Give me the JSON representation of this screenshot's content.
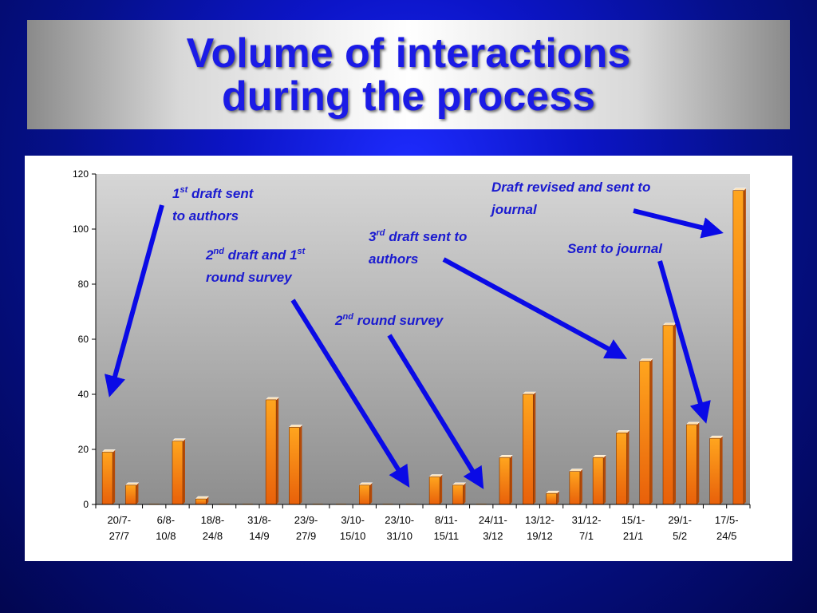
{
  "slide": {
    "title_line1": "Volume of interactions",
    "title_line2": "during the process"
  },
  "colors": {
    "bar_top": "#ffa51e",
    "bar_bottom": "#e8600a",
    "arrow": "#0a0ae6",
    "annotation_text": "#1a1ad0"
  },
  "chart_data": {
    "type": "bar",
    "categories": [
      "20/7",
      "27/7",
      "6/8",
      "",
      "18/8",
      "24/8",
      "31/8",
      "",
      "23/9",
      "27/9",
      "3/10",
      "",
      "23/10",
      "31/10",
      "8/11",
      "",
      "24/11",
      "3/12",
      "13/12",
      "19/12",
      "31/12",
      "7/1",
      "15/1",
      "21/1",
      "29/1",
      "5/2",
      "17/5",
      "24/5"
    ],
    "values": [
      19,
      7,
      0,
      23,
      2,
      0,
      0,
      38,
      28,
      0,
      0,
      7,
      0,
      0,
      10,
      7,
      0,
      17,
      40,
      4,
      12,
      17,
      26,
      52,
      65,
      29,
      24,
      114
    ],
    "x_tick_labels": [
      {
        "line1": "20/7-",
        "line2": "27/7"
      },
      {
        "line1": "6/8-",
        "line2": "10/8"
      },
      {
        "line1": "18/8-",
        "line2": "24/8"
      },
      {
        "line1": "31/8-",
        "line2": "14/9"
      },
      {
        "line1": "23/9-",
        "line2": "27/9"
      },
      {
        "line1": "3/10-",
        "line2": "15/10"
      },
      {
        "line1": "23/10-",
        "line2": "31/10"
      },
      {
        "line1": "8/11-",
        "line2": "15/11"
      },
      {
        "line1": "24/11-",
        "line2": "3/12"
      },
      {
        "line1": "13/12-",
        "line2": "19/12"
      },
      {
        "line1": "31/12-",
        "line2": "7/1"
      },
      {
        "line1": "15/1-",
        "line2": "21/1"
      },
      {
        "line1": "29/1-",
        "line2": "5/2"
      },
      {
        "line1": "17/5-",
        "line2": "24/5"
      }
    ],
    "y_ticks": [
      0,
      20,
      40,
      60,
      80,
      100,
      120
    ],
    "ylim": [
      0,
      120
    ],
    "grid": false,
    "annotations": [
      {
        "lines": [
          "1st draft sent",
          "to authors"
        ],
        "target_bar": 0
      },
      {
        "lines": [
          "2nd draft and 1st",
          "round survey"
        ],
        "target_bar": 12
      },
      {
        "lines": [
          "2nd round survey"
        ],
        "target_bar": 16
      },
      {
        "lines": [
          "3rd draft sent to",
          "authors"
        ],
        "target_bar": 22
      },
      {
        "lines": [
          "Draft revised and sent to",
          "journal"
        ],
        "target_bar": 27
      },
      {
        "lines": [
          "Sent to journal"
        ],
        "target_bar": 26
      }
    ]
  }
}
